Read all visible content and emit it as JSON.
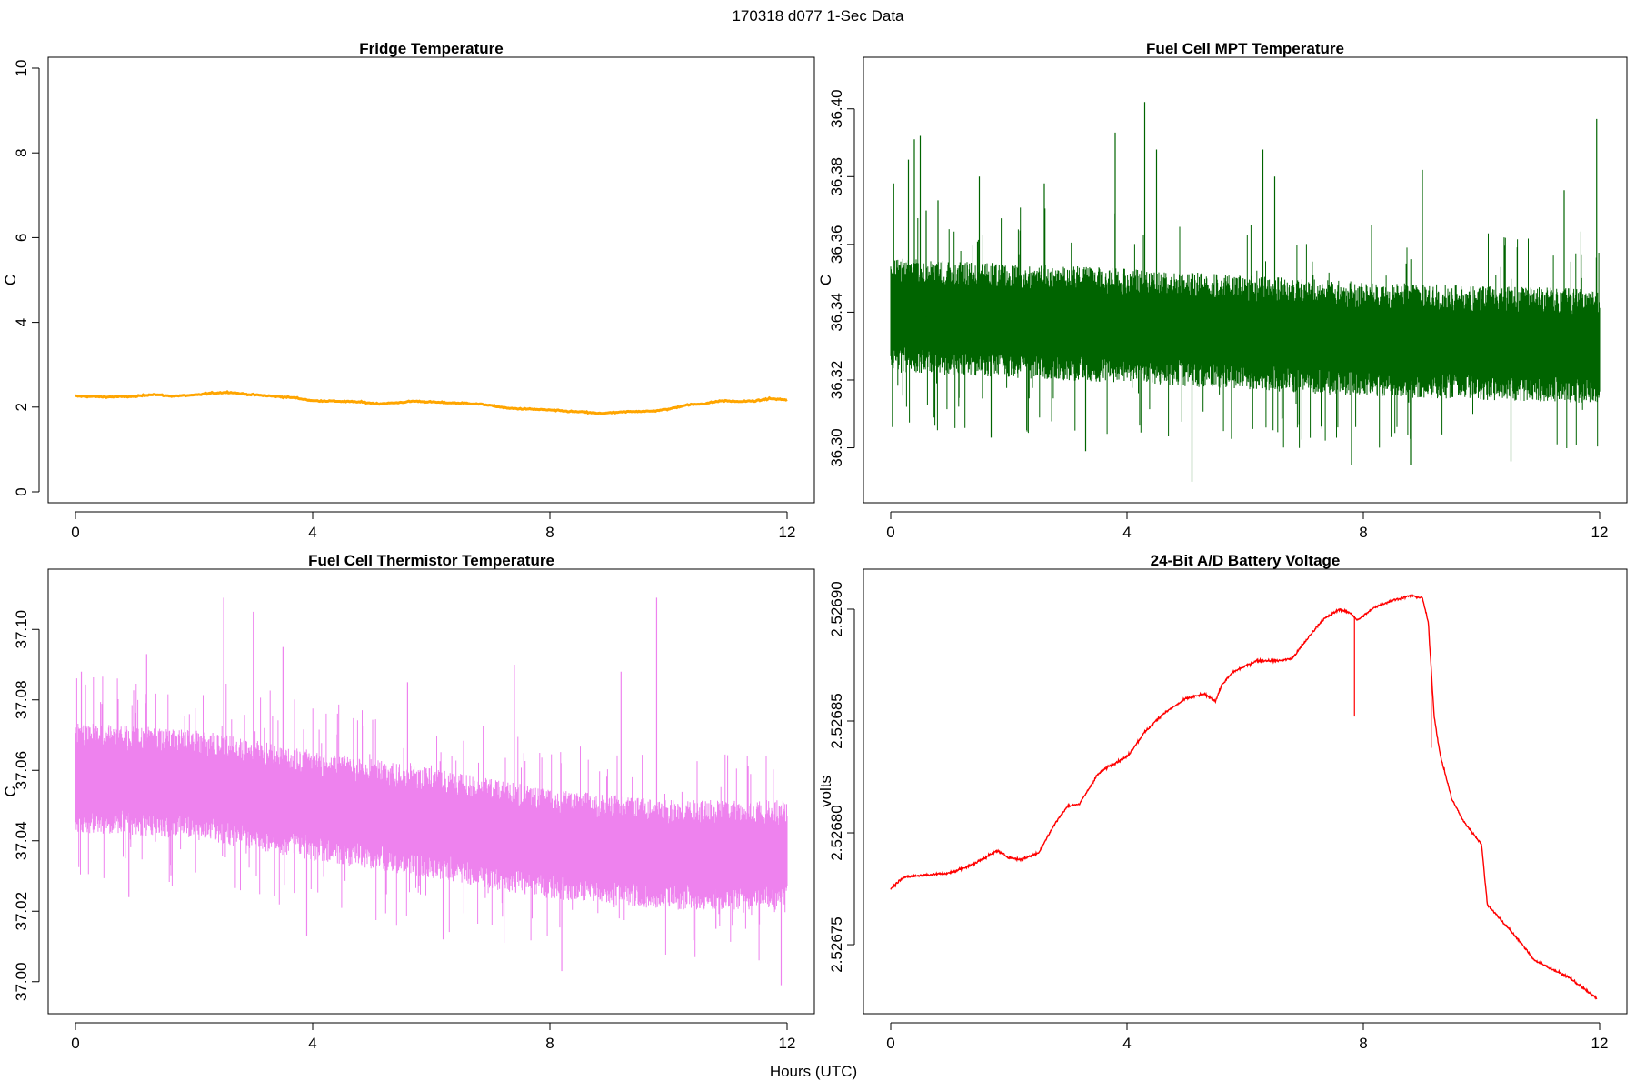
{
  "figure": {
    "title": "170318   d077   1-Sec Data",
    "xlabel": "Hours (UTC)"
  },
  "chart_data": [
    {
      "type": "line",
      "title": "Fridge Temperature",
      "xlabel": "",
      "ylabel": "C",
      "xlim": [
        0,
        12
      ],
      "ylim": [
        0,
        10
      ],
      "xticks": [
        0,
        4,
        8,
        12
      ],
      "yticks": [
        0,
        2,
        4,
        6,
        8,
        10
      ],
      "ytick_labels": [
        "0",
        "2",
        "4",
        "6",
        "8",
        "10"
      ],
      "color": "#FFA500",
      "grid": false,
      "series": [
        {
          "x": [
            0,
            0.5,
            1,
            1.3,
            1.6,
            2,
            2.3,
            2.6,
            2.9,
            3.3,
            3.7,
            4,
            4.4,
            4.8,
            5.1,
            5.4,
            5.7,
            6,
            6.3,
            6.6,
            6.9,
            7.3,
            7.7,
            8,
            8.3,
            8.6,
            8.8,
            9.1,
            9.4,
            9.7,
            10,
            10.3,
            10.6,
            10.9,
            11.2,
            11.5,
            11.7,
            12
          ],
          "y": [
            2.26,
            2.24,
            2.25,
            2.3,
            2.26,
            2.28,
            2.33,
            2.35,
            2.3,
            2.26,
            2.22,
            2.15,
            2.14,
            2.12,
            2.08,
            2.1,
            2.14,
            2.12,
            2.1,
            2.09,
            2.06,
            1.97,
            1.95,
            1.93,
            1.9,
            1.88,
            1.85,
            1.87,
            1.9,
            1.9,
            1.95,
            2.05,
            2.08,
            2.15,
            2.13,
            2.15,
            2.2,
            2.17
          ]
        }
      ]
    },
    {
      "type": "line",
      "title": "Fuel Cell MPT Temperature",
      "xlabel": "",
      "ylabel": "C",
      "xlim": [
        0,
        12
      ],
      "ylim": [
        36.287,
        36.412
      ],
      "xticks": [
        0,
        4,
        8,
        12
      ],
      "yticks": [
        36.3,
        36.32,
        36.34,
        36.36,
        36.38,
        36.4
      ],
      "ytick_labels": [
        "36.30",
        "36.32",
        "36.34",
        "36.36",
        "36.38",
        "36.40"
      ],
      "color": "#006400",
      "grid": false,
      "noise": {
        "center": 36.334,
        "core": 0.013,
        "extreme": 0.02
      },
      "series": [
        {
          "x": [
            0,
            4,
            8,
            12
          ],
          "y": [
            36.339,
            36.336,
            36.332,
            36.33
          ]
        }
      ],
      "spikes": [
        {
          "x": 0.05,
          "y": 36.378
        },
        {
          "x": 0.3,
          "y": 36.385
        },
        {
          "x": 0.4,
          "y": 36.391
        },
        {
          "x": 0.5,
          "y": 36.392
        },
        {
          "x": 0.6,
          "y": 36.37
        },
        {
          "x": 0.8,
          "y": 36.373
        },
        {
          "x": 1.5,
          "y": 36.38
        },
        {
          "x": 2.6,
          "y": 36.378
        },
        {
          "x": 3.8,
          "y": 36.393
        },
        {
          "x": 4.3,
          "y": 36.402
        },
        {
          "x": 4.5,
          "y": 36.388
        },
        {
          "x": 6.3,
          "y": 36.388
        },
        {
          "x": 6.5,
          "y": 36.38
        },
        {
          "x": 9.0,
          "y": 36.382
        },
        {
          "x": 11.4,
          "y": 36.376
        },
        {
          "x": 11.95,
          "y": 36.397
        },
        {
          "x": 5.1,
          "y": 36.29
        },
        {
          "x": 3.3,
          "y": 36.299
        },
        {
          "x": 7.8,
          "y": 36.295
        },
        {
          "x": 8.8,
          "y": 36.295
        },
        {
          "x": 10.5,
          "y": 36.296
        },
        {
          "x": 1.7,
          "y": 36.303
        }
      ]
    },
    {
      "type": "line",
      "title": "Fuel Cell Thermistor Temperature",
      "xlabel": "",
      "ylabel": "C",
      "xlim": [
        0,
        12
      ],
      "ylim": [
        36.994,
        37.114
      ],
      "xticks": [
        0,
        4,
        8,
        12
      ],
      "yticks": [
        37.0,
        37.02,
        37.04,
        37.06,
        37.08,
        37.1
      ],
      "ytick_labels": [
        "37.00",
        "37.02",
        "37.04",
        "37.06",
        "37.08",
        "37.10"
      ],
      "color": "#EE82EE",
      "grid": false,
      "noise": {
        "center": 0,
        "core": 0.012,
        "extreme": 0.018
      },
      "series": [
        {
          "x": [
            0,
            2,
            4,
            6,
            8,
            10,
            12
          ],
          "y": [
            37.058,
            37.056,
            37.05,
            37.045,
            37.039,
            37.036,
            37.036
          ]
        }
      ],
      "spikes": [
        {
          "x": 2.5,
          "y": 37.109
        },
        {
          "x": 3.0,
          "y": 37.105
        },
        {
          "x": 9.8,
          "y": 37.109
        },
        {
          "x": 1.2,
          "y": 37.093
        },
        {
          "x": 0.1,
          "y": 37.088
        },
        {
          "x": 3.5,
          "y": 37.095
        },
        {
          "x": 7.4,
          "y": 37.09
        },
        {
          "x": 9.2,
          "y": 37.088
        },
        {
          "x": 5.6,
          "y": 37.085
        },
        {
          "x": 11.9,
          "y": 36.999
        },
        {
          "x": 8.2,
          "y": 37.003
        },
        {
          "x": 3.9,
          "y": 37.013
        },
        {
          "x": 6.2,
          "y": 37.012
        },
        {
          "x": 0.9,
          "y": 37.024
        },
        {
          "x": 10.8,
          "y": 37.015
        }
      ]
    },
    {
      "type": "line",
      "title": "24-Bit A/D Battery Voltage",
      "xlabel": "",
      "ylabel": "volts",
      "xlim": [
        0,
        12
      ],
      "ylim": [
        2.526724,
        2.526913
      ],
      "xticks": [
        0,
        4,
        8,
        12
      ],
      "yticks": [
        2.52675,
        2.5268,
        2.52685,
        2.5269
      ],
      "ytick_labels": [
        "2.52675",
        "2.52680",
        "2.52685",
        "2.52690"
      ],
      "color": "#FF0000",
      "grid": false,
      "series": [
        {
          "x": [
            0,
            0.2,
            0.5,
            1,
            1.4,
            1.8,
            2.0,
            2.2,
            2.5,
            2.8,
            3.0,
            3.2,
            3.5,
            3.7,
            4.0,
            4.3,
            4.6,
            5.0,
            5.3,
            5.5,
            5.6,
            5.8,
            6.2,
            6.6,
            6.8,
            7.0,
            7.3,
            7.6,
            7.8,
            7.9,
            8.2,
            8.5,
            8.8,
            9.0,
            9.1,
            9.2,
            9.3,
            9.5,
            9.7,
            10.0,
            10.1,
            10.3,
            10.6,
            10.9,
            11.2,
            11.5,
            11.8,
            11.95
          ],
          "y": [
            2.526775,
            2.52678,
            2.526781,
            2.526782,
            2.526786,
            2.526792,
            2.526789,
            2.526788,
            2.526791,
            2.526805,
            2.526812,
            2.526813,
            2.526826,
            2.52683,
            2.526834,
            2.526845,
            2.526853,
            2.52686,
            2.526862,
            2.526859,
            2.526866,
            2.526872,
            2.526877,
            2.526877,
            2.526878,
            2.526885,
            2.526895,
            2.5269,
            2.526898,
            2.526895,
            2.526901,
            2.526904,
            2.526906,
            2.526905,
            2.526894,
            2.526852,
            2.526835,
            2.526815,
            2.526805,
            2.526795,
            2.526768,
            2.526762,
            2.526753,
            2.526743,
            2.526739,
            2.526735,
            2.526729,
            2.526726
          ]
        }
      ],
      "spikes": [
        {
          "x": 7.85,
          "y": 2.526852
        },
        {
          "x": 9.15,
          "y": 2.526838
        }
      ]
    }
  ]
}
